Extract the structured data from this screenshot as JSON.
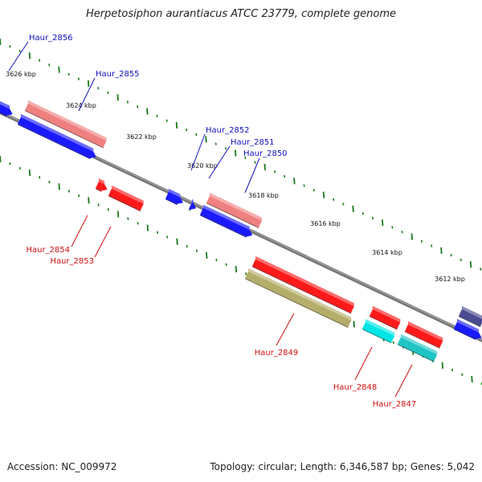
{
  "title": "Herpetosiphon aurantiacus ATCC 23779, complete genome",
  "accession": "Accession: NC_009972",
  "summary": "Topology: circular; Length: 6,346,587 bp; Genes: 5,042",
  "colors": {
    "forward_cds": "#1a1aff",
    "reverse_cds": "#ff1a1a",
    "pink_cds": "#f08080",
    "olive_cds": "#b5ad6a",
    "cyan_cds": "#00e5e5",
    "teal_cds": "#1fc4c4",
    "navy_cds": "#4a4a90",
    "backbone": "#777777",
    "dots": "#1a7a1a",
    "forward_label": "#1010c0",
    "reverse_label": "#d01010"
  },
  "ticks": [
    {
      "label": "3626 kbp"
    },
    {
      "label": "3624 kbp"
    },
    {
      "label": "3622 kbp"
    },
    {
      "label": "3620 kbp"
    },
    {
      "label": "3618 kbp"
    },
    {
      "label": "3616 kbp"
    },
    {
      "label": "3614 kbp"
    },
    {
      "label": "3612 kbp"
    }
  ],
  "genes": [
    {
      "label": "Haur_2856",
      "strand": "forward"
    },
    {
      "label": "Haur_2855",
      "strand": "forward"
    },
    {
      "label": "Haur_2852",
      "strand": "forward"
    },
    {
      "label": "Haur_2851",
      "strand": "forward"
    },
    {
      "label": "Haur_2850",
      "strand": "forward"
    },
    {
      "label": "Haur_2854",
      "strand": "reverse"
    },
    {
      "label": "Haur_2853",
      "strand": "reverse"
    },
    {
      "label": "Haur_2849",
      "strand": "reverse"
    },
    {
      "label": "Haur_2848",
      "strand": "reverse"
    },
    {
      "label": "Haur_2847",
      "strand": "reverse"
    }
  ]
}
